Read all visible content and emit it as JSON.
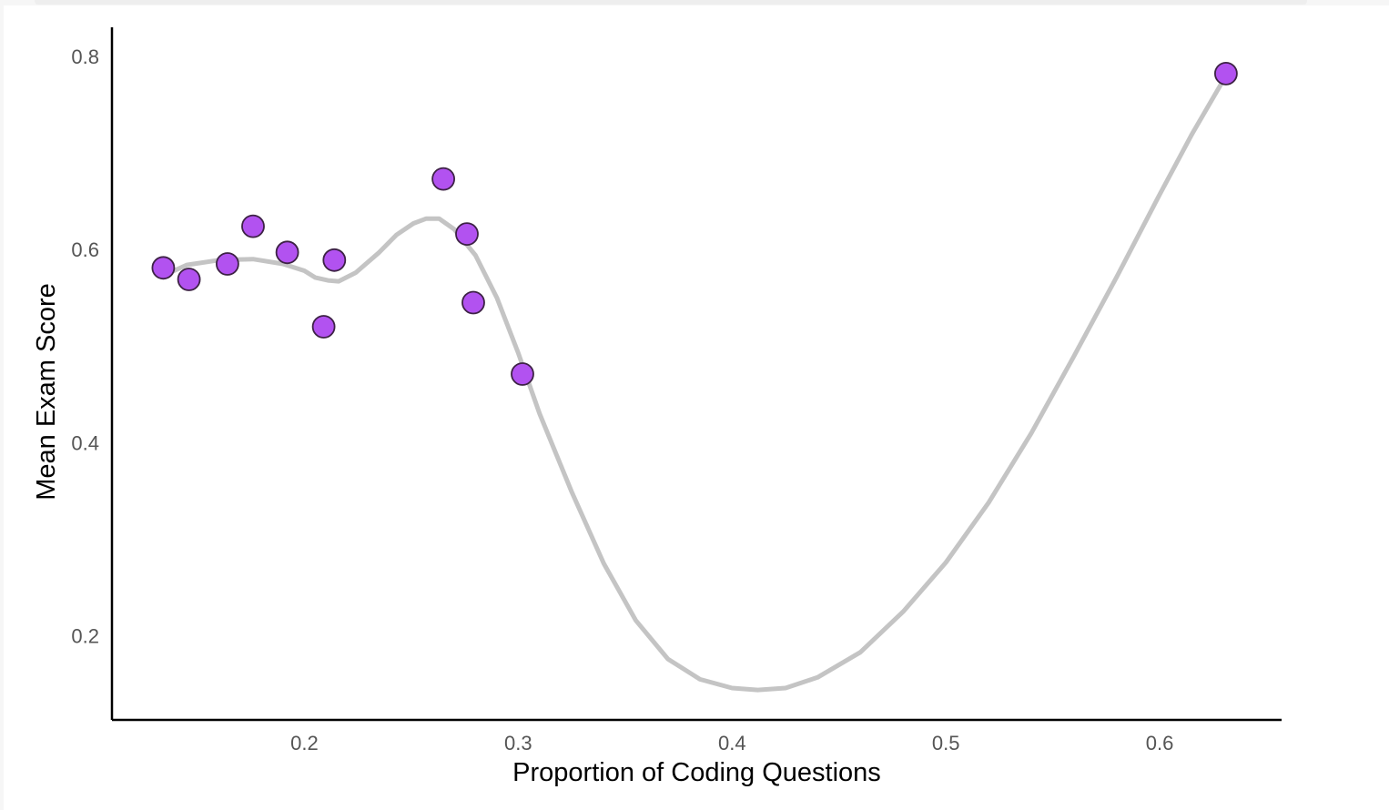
{
  "chart_data": {
    "type": "scatter",
    "xlabel": "Proportion of Coding Questions",
    "ylabel": "Mean Exam Score",
    "xlim": [
      0.11,
      0.657
    ],
    "ylim": [
      0.113,
      0.83
    ],
    "x_ticks": [
      0.2,
      0.3,
      0.4,
      0.5,
      0.6
    ],
    "y_ticks": [
      0.2,
      0.4,
      0.6,
      0.8
    ],
    "x_tick_labels": [
      "0.2",
      "0.3",
      "0.4",
      "0.5",
      "0.6"
    ],
    "y_tick_labels": [
      "0.2",
      "0.4",
      "0.6",
      "0.8"
    ],
    "grid": false,
    "points": [
      {
        "x": 0.134,
        "y": 0.581
      },
      {
        "x": 0.146,
        "y": 0.569
      },
      {
        "x": 0.164,
        "y": 0.585
      },
      {
        "x": 0.176,
        "y": 0.624
      },
      {
        "x": 0.192,
        "y": 0.597
      },
      {
        "x": 0.209,
        "y": 0.52
      },
      {
        "x": 0.214,
        "y": 0.589
      },
      {
        "x": 0.265,
        "y": 0.673
      },
      {
        "x": 0.276,
        "y": 0.616
      },
      {
        "x": 0.279,
        "y": 0.545
      },
      {
        "x": 0.302,
        "y": 0.471
      },
      {
        "x": 0.631,
        "y": 0.782
      }
    ],
    "trend_line": [
      {
        "x": 0.134,
        "y": 0.573
      },
      {
        "x": 0.145,
        "y": 0.584
      },
      {
        "x": 0.16,
        "y": 0.589
      },
      {
        "x": 0.176,
        "y": 0.59
      },
      {
        "x": 0.19,
        "y": 0.585
      },
      {
        "x": 0.2,
        "y": 0.578
      },
      {
        "x": 0.205,
        "y": 0.571
      },
      {
        "x": 0.211,
        "y": 0.568
      },
      {
        "x": 0.216,
        "y": 0.567
      },
      {
        "x": 0.224,
        "y": 0.576
      },
      {
        "x": 0.235,
        "y": 0.597
      },
      {
        "x": 0.243,
        "y": 0.615
      },
      {
        "x": 0.251,
        "y": 0.627
      },
      {
        "x": 0.257,
        "y": 0.632
      },
      {
        "x": 0.263,
        "y": 0.632
      },
      {
        "x": 0.27,
        "y": 0.621
      },
      {
        "x": 0.28,
        "y": 0.594
      },
      {
        "x": 0.29,
        "y": 0.55
      },
      {
        "x": 0.3,
        "y": 0.493
      },
      {
        "x": 0.31,
        "y": 0.43
      },
      {
        "x": 0.325,
        "y": 0.349
      },
      {
        "x": 0.34,
        "y": 0.275
      },
      {
        "x": 0.355,
        "y": 0.216
      },
      {
        "x": 0.37,
        "y": 0.176
      },
      {
        "x": 0.385,
        "y": 0.155
      },
      {
        "x": 0.4,
        "y": 0.146
      },
      {
        "x": 0.412,
        "y": 0.144
      },
      {
        "x": 0.425,
        "y": 0.146
      },
      {
        "x": 0.44,
        "y": 0.157
      },
      {
        "x": 0.46,
        "y": 0.183
      },
      {
        "x": 0.48,
        "y": 0.225
      },
      {
        "x": 0.5,
        "y": 0.276
      },
      {
        "x": 0.52,
        "y": 0.338
      },
      {
        "x": 0.54,
        "y": 0.41
      },
      {
        "x": 0.56,
        "y": 0.49
      },
      {
        "x": 0.58,
        "y": 0.572
      },
      {
        "x": 0.6,
        "y": 0.657
      },
      {
        "x": 0.615,
        "y": 0.719
      },
      {
        "x": 0.631,
        "y": 0.78
      }
    ],
    "colors": {
      "point_fill": "#b252f0",
      "point_stroke": "#3d2245",
      "trend_line": "#c4c4c4",
      "axis": "#000000"
    }
  }
}
